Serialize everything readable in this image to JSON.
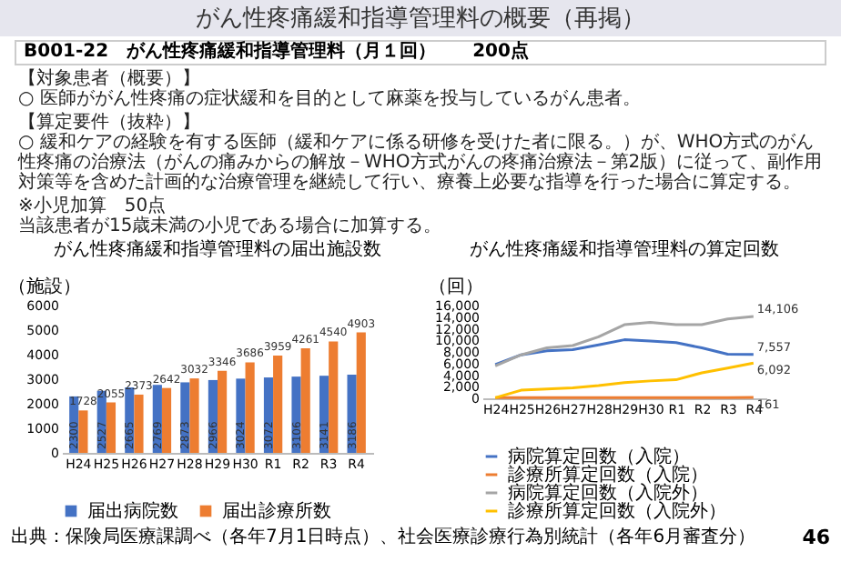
{
  "chart_data": [
    {
      "type": "other",
      "title": "がん性疼痛緩和指導管理料の概要（再掲）",
      "subtitle": "B001-22　がん性疼痛緩和指導管理料（月１回）　　200点",
      "annotations": [
        "【対象患者（概要）】",
        "○ 医師ががん性疼痛の症状緩和を目的として麻薬を投与しているがん患者。",
        "【算定要件（抜粋）】",
        "○ 緩和ケアの経験を有する医師（緩和ケアに係る研修を受けた者に限る。）が、WHO方式のがん性疼痛の治療法（がんの痛みからの解放－WHO方式がんの疼痛治療法－第2版）に従って、副作用対策等を含めた計画的な治療管理を継続して行い、療養上必要な指導を行った場合に算定する。",
        "※小児加算　50点",
        "当該患者が15歳未満の小児である場合に加算する。"
      ]
    },
    {
      "type": "bar",
      "title": "がん性疼痛緩和指導管理料の届出施設数",
      "ylabel": "（施設）",
      "categories": [
        "H24",
        "H25",
        "H26",
        "H27",
        "H28",
        "H29",
        "H30",
        "R1",
        "R2",
        "R3",
        "R4"
      ],
      "series": [
        {
          "name": "届出病院数",
          "color": "#4472c4",
          "values": [
            2300,
            2527,
            2665,
            2769,
            2873,
            2966,
            3024,
            3072,
            3106,
            3141,
            3186
          ]
        },
        {
          "name": "届出診療所数",
          "color": "#ed7d31",
          "values": [
            1728,
            2055,
            2373,
            2642,
            3032,
            3346,
            3686,
            3959,
            4261,
            4540,
            4903
          ]
        }
      ],
      "ylim": [
        0,
        6000
      ],
      "yticks": [
        0,
        1000,
        2000,
        3000,
        4000,
        5000,
        6000
      ],
      "data_labels": true,
      "legend": "bottom"
    },
    {
      "type": "line",
      "title": "がん性疼痛緩和指導管理料の算定回数",
      "ylabel": "（回）",
      "categories": [
        "H24",
        "H25",
        "H26",
        "H27",
        "H28",
        "H29",
        "H30",
        "R1",
        "R2",
        "R3",
        "R4"
      ],
      "series": [
        {
          "name": "病院算定回数（入院）",
          "color": "#4472c4",
          "values": [
            5800,
            7500,
            8200,
            8400,
            9200,
            10100,
            9900,
            9600,
            8700,
            7600,
            7557
          ],
          "value_labels": [
            null,
            null,
            null,
            null,
            null,
            null,
            null,
            null,
            null,
            null,
            "7,557"
          ]
        },
        {
          "name": "診療所算定回数（入院）",
          "color": "#ed7d31",
          "values": [
            100,
            100,
            100,
            100,
            100,
            100,
            100,
            100,
            100,
            100,
            161
          ],
          "value_labels": [
            null,
            null,
            null,
            null,
            null,
            null,
            null,
            null,
            null,
            null,
            "161"
          ]
        },
        {
          "name": "病院算定回数（入院外）",
          "color": "#a5a5a5",
          "values": [
            5600,
            7500,
            8700,
            9100,
            10600,
            12700,
            13100,
            12700,
            12700,
            13700,
            14106
          ],
          "value_labels": [
            null,
            null,
            null,
            null,
            null,
            null,
            null,
            null,
            null,
            null,
            "14,106"
          ]
        },
        {
          "name": "診療所算定回数（入院外）",
          "color": "#ffc000",
          "values": [
            100,
            1400,
            1600,
            1800,
            2200,
            2700,
            3000,
            3200,
            4400,
            5200,
            6092
          ],
          "value_labels": [
            null,
            null,
            null,
            null,
            null,
            null,
            null,
            null,
            null,
            null,
            "6,092"
          ]
        }
      ],
      "ylim": [
        0,
        16000
      ],
      "yticks": [
        0,
        {
          "value": 2000,
          "label": "2,000"
        },
        {
          "value": 4000,
          "label": "4,000"
        },
        {
          "value": 6000,
          "label": "6,000"
        },
        {
          "value": 8000,
          "label": "8,000"
        },
        {
          "value": 10000,
          "label": "10,000"
        },
        {
          "value": 12000,
          "label": "12,000"
        },
        {
          "value": 14000,
          "label": "14,000"
        },
        {
          "value": 16000,
          "label": "16,000"
        }
      ],
      "legend": "bottom"
    },
    {
      "type": "other",
      "annotations": [
        "出典：保険局医療課調べ（各年7月1日時点）、社会医療診療行為別統計（各年6月審査分）",
        "46"
      ]
    }
  ]
}
